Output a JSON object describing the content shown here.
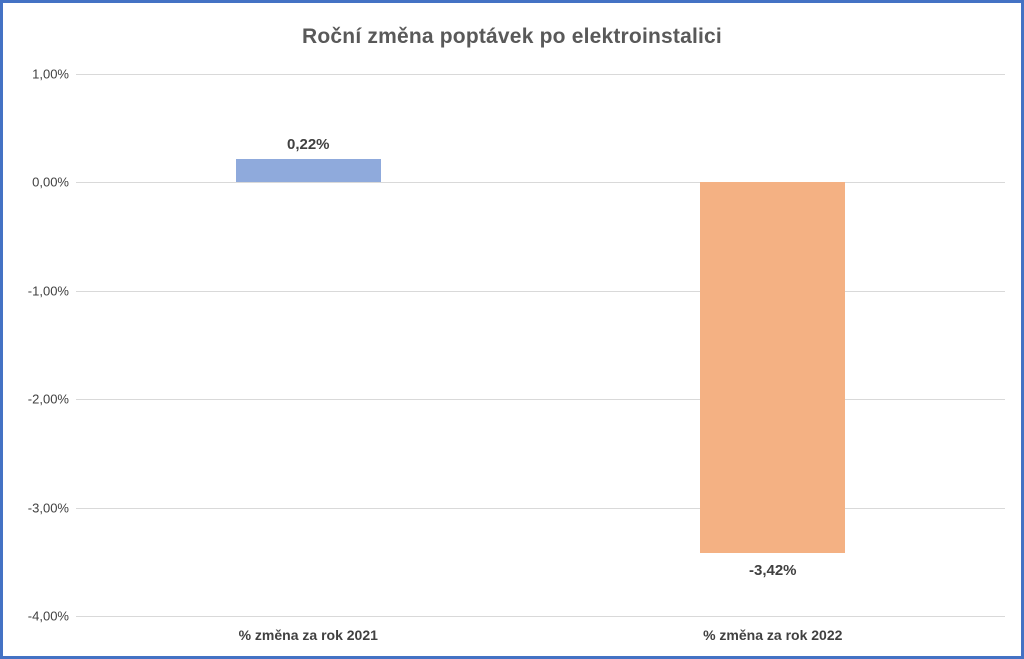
{
  "chart_data": {
    "type": "bar",
    "title": "Roční změna poptávek po elektroinstalici",
    "categories": [
      "% změna za rok 2021",
      "% změna za rok 2022"
    ],
    "values": [
      0.22,
      -3.42
    ],
    "value_labels": [
      "0,22%",
      "-3,42%"
    ],
    "bar_colors": [
      "#8FAADC",
      "#F4B183"
    ],
    "xlabel": "",
    "ylabel": "",
    "ylim": [
      -4,
      1
    ],
    "yticks": [
      {
        "value": 1,
        "label": "1,00%"
      },
      {
        "value": 0,
        "label": "0,00%"
      },
      {
        "value": -1,
        "label": "-1,00%"
      },
      {
        "value": -2,
        "label": "-2,00%"
      },
      {
        "value": -3,
        "label": "-3,00%"
      },
      {
        "value": -4,
        "label": "-4,00%"
      }
    ],
    "grid": true,
    "legend": false,
    "bar_width_ratio": 0.3125
  },
  "colors": {
    "border": "#4472C4",
    "gridline": "#D9D9D9",
    "title_text": "#595959",
    "tick_text": "#404040",
    "data_label_text": "#404040",
    "category_text": "#404040",
    "background": "#FFFFFF"
  }
}
